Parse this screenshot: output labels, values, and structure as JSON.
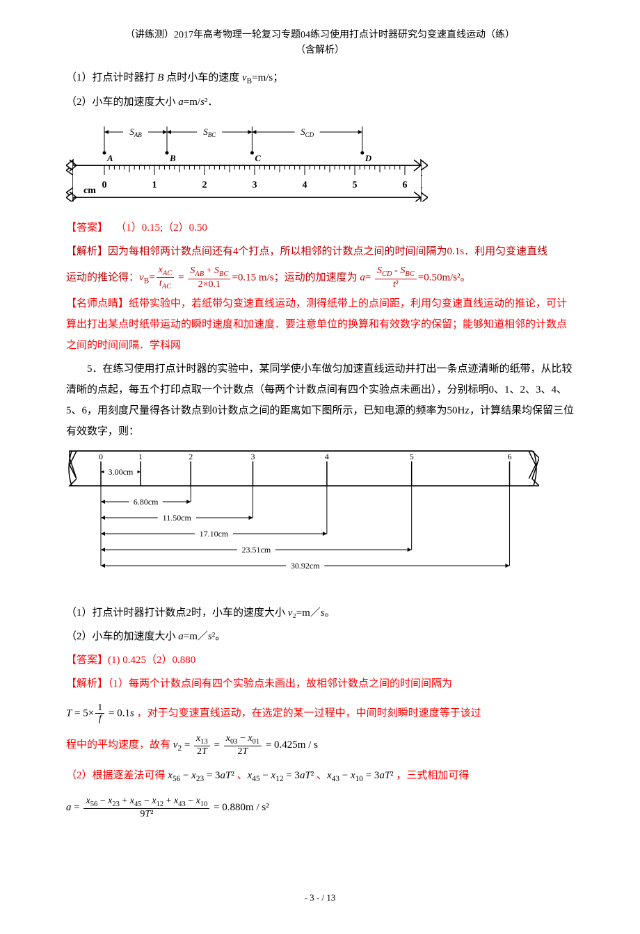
{
  "header": {
    "line1": "（讲练测）2017年高考物理一轮复习专题04练习使用打点计时器研究匀变速直线运动（练）",
    "line2": "（含解析）"
  },
  "q4": {
    "line1": "（1）打点计时器打 B 点时小车的速度 v_B=m/s；",
    "line2": "（2）小车的加速度大小 a=m/s²．",
    "answer_label": "【答案】",
    "answer": "（1）0.15;（2）0.50",
    "analysis_label": "【解析】",
    "analysis_text1": "因为每相邻两计数点间还有4个打点，所以相邻的计数点之间的时间间隔为0.1s．利用匀变速直线",
    "analysis_text2_prefix": "运动的推论得：",
    "analysis_text2_suffix": "=0.15 m/s；运动的加速度为 ",
    "analysis_text2_end": "=0.50m/s²。",
    "teacher_label": "【名师点睛】",
    "teacher_text": "纸带实验中，若纸带匀变速直线运动，测得纸带上的点间距，利用匀变速直线运动的推论，可计算出打出某点时纸带运动的瞬时速度和加速度．要注意单位的换算和有效数字的保留；能够知道相邻的计数点之间的时间间隔．学科网",
    "ruler": {
      "labels": {
        "SAB": "S_AB",
        "SBC": "S_BC",
        "SCD": "S_CD"
      },
      "points": [
        "A",
        "B",
        "C",
        "D"
      ],
      "point_positions": [
        0,
        1.25,
        2.95,
        5.15
      ],
      "scale_start": 0,
      "scale_end": 6,
      "unit": "cm"
    }
  },
  "q5": {
    "number": "5．",
    "text": "在练习使用打点计时器的实验中，某同学使小车做匀加速直线运动并打出一条点迹清晰的纸带，从比较清晰的点起，每五个打印点取一个计数点（每两个计数点间有四个实验点未画出），分别标明0、1、2、3、4、5、6，用刻度尺量得各计数点到0计数点之间的距离如下图所示，已知电源的频率为50Hz，计算结果均保留三位有效数字，则：",
    "line1": "（1）打点计时器打计数点2时，小车的速度大小 v₂=m／s。",
    "line2": "（2）小车的加速度大小 a=m／s²。",
    "answer_label": "【答案】",
    "answer": "(1) 0.425（2）0.880",
    "analysis_label": "【解析】",
    "analysis_text1": "（1）每两个计数点间有四个实验点未画出，故相邻计数点之间的时间间隔为",
    "formula1_suffix": "，对于匀变速直线运动，在选定的某一过程中，中间时刻瞬时速度等于该过",
    "formula2_prefix": "程中的平均速度，故有 ",
    "formula2_result": " = 0.425m / s",
    "part2_prefix": "（2）根据逐差法可得 ",
    "part2_suffix": "，三式相加可得",
    "formula3_result": " = 0.880m / s²",
    "tape": {
      "points": [
        "0",
        "1",
        "2",
        "3",
        "4",
        "5",
        "6"
      ],
      "positions": [
        0,
        3.0,
        6.8,
        11.5,
        17.1,
        23.51,
        30.92
      ],
      "labels": [
        "3.00cm",
        "6.80cm",
        "11.50cm",
        "17.10cm",
        "23.51cm",
        "30.92cm"
      ]
    }
  },
  "footer": {
    "page": "- 3 -",
    "total": "/ 13"
  },
  "colors": {
    "red": "#ff0000",
    "orange": "#c00000",
    "black": "#000000"
  }
}
